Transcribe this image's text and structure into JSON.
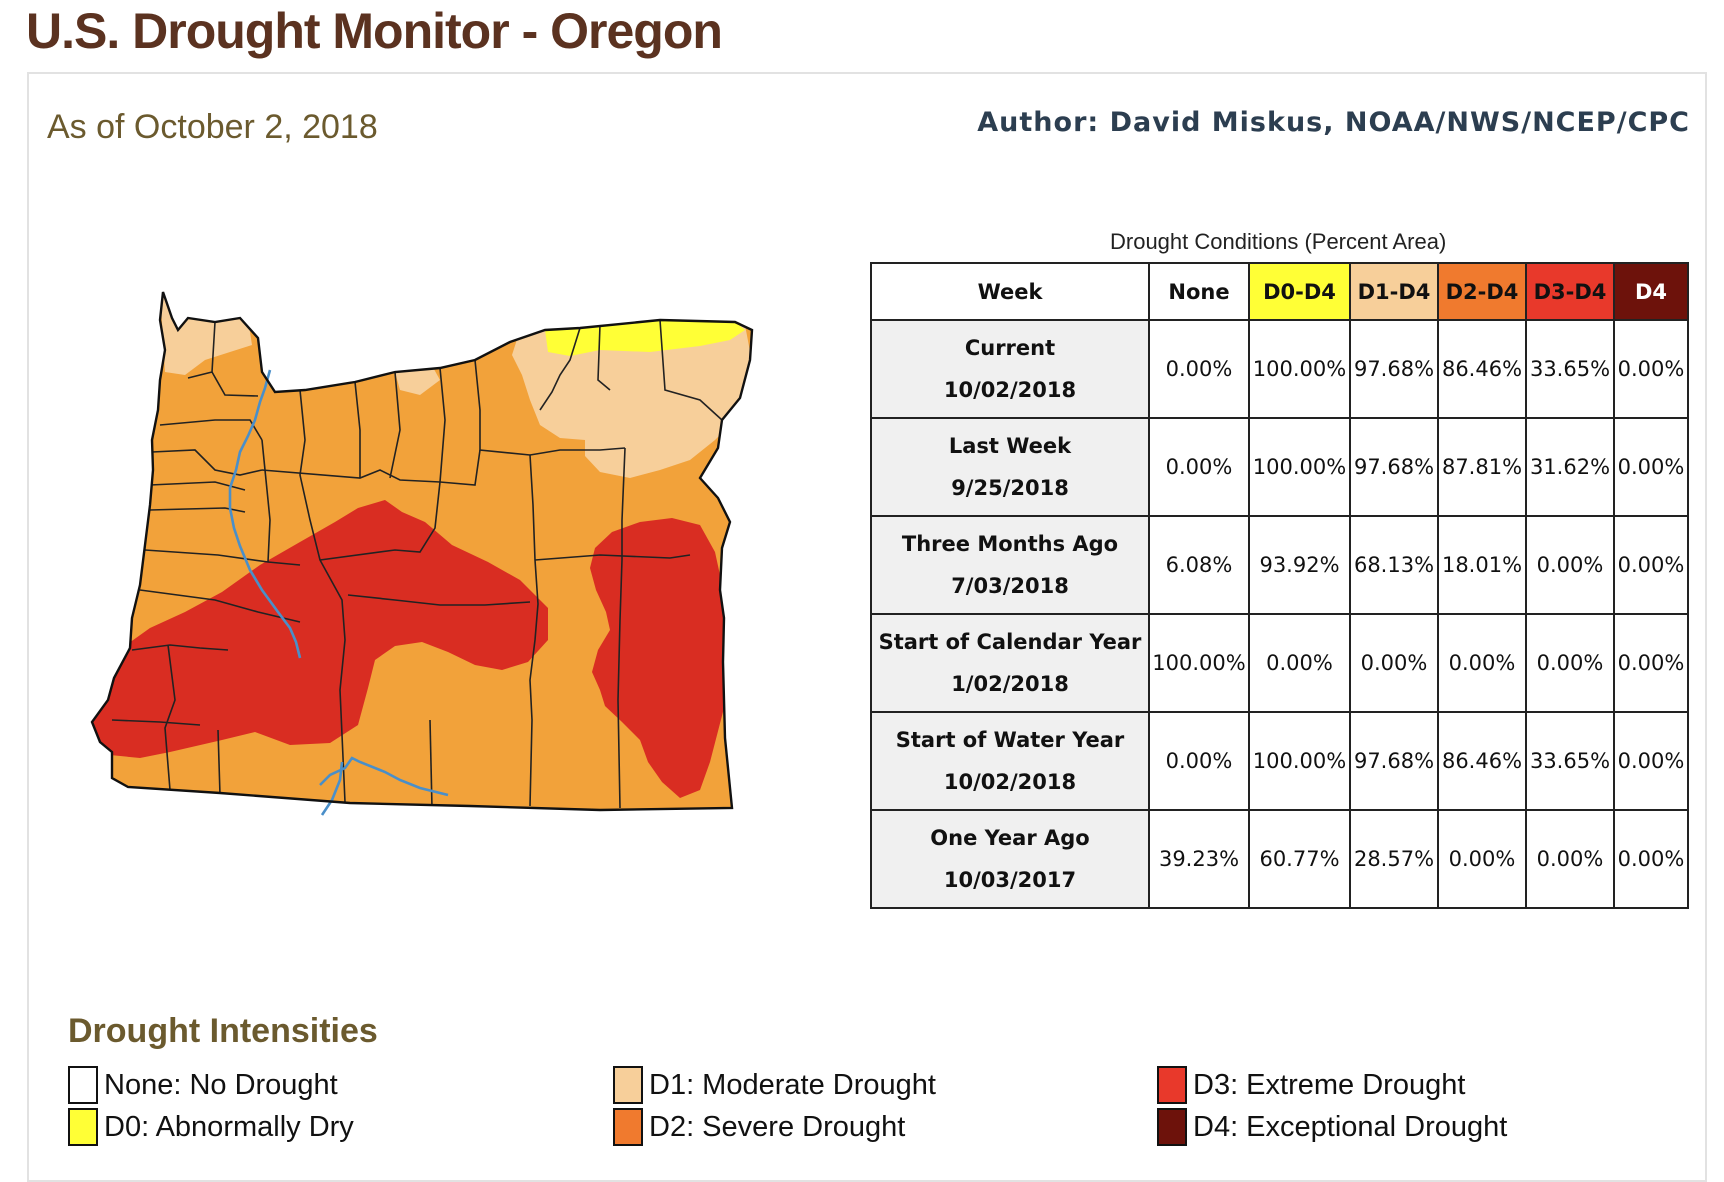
{
  "header": {
    "title": "U.S. Drought Monitor - Oregon",
    "as_of": "As of October 2, 2018",
    "author": "Author: David Miskus, NOAA/NWS/NCEP/CPC"
  },
  "map": {
    "region": "Oregon",
    "colors": {
      "none": "#ffffff",
      "d0": "#ffff36",
      "d1": "#f7cf9a",
      "d2": "#f2a23a",
      "d3": "#d92d22",
      "d4": "#6d120b",
      "water": "#4a8fc9",
      "boundary": "#222222"
    }
  },
  "table": {
    "caption": "Drought Conditions (Percent Area)",
    "headers": [
      "Week",
      "None",
      "D0-D4",
      "D1-D4",
      "D2-D4",
      "D3-D4",
      "D4"
    ],
    "header_colors": [
      "#ffffff",
      "#ffffff",
      "#ffff36",
      "#f7cf9a",
      "#f07a2e",
      "#e8392b",
      "#6d120b"
    ],
    "rows": [
      {
        "label": "Current",
        "date": "10/02/2018",
        "values": [
          "0.00%",
          "100.00%",
          "97.68%",
          "86.46%",
          "33.65%",
          "0.00%"
        ]
      },
      {
        "label": "Last Week",
        "date": "9/25/2018",
        "values": [
          "0.00%",
          "100.00%",
          "97.68%",
          "87.81%",
          "31.62%",
          "0.00%"
        ]
      },
      {
        "label": "Three Months Ago",
        "date": "7/03/2018",
        "values": [
          "6.08%",
          "93.92%",
          "68.13%",
          "18.01%",
          "0.00%",
          "0.00%"
        ]
      },
      {
        "label": "Start of Calendar Year",
        "date": "1/02/2018",
        "values": [
          "100.00%",
          "0.00%",
          "0.00%",
          "0.00%",
          "0.00%",
          "0.00%"
        ]
      },
      {
        "label": "Start of Water Year",
        "date": "10/02/2018",
        "values": [
          "0.00%",
          "100.00%",
          "97.68%",
          "86.46%",
          "33.65%",
          "0.00%"
        ]
      },
      {
        "label": "One Year Ago",
        "date": "10/03/2017",
        "values": [
          "39.23%",
          "60.77%",
          "28.57%",
          "0.00%",
          "0.00%",
          "0.00%"
        ]
      }
    ]
  },
  "legend": {
    "title": "Drought Intensities",
    "items": [
      {
        "label": "None: No Drought",
        "color": "#ffffff"
      },
      {
        "label": "D0: Abnormally Dry",
        "color": "#ffff36"
      },
      {
        "label": "D1: Moderate Drought",
        "color": "#f7cf9a"
      },
      {
        "label": "D2: Severe Drought",
        "color": "#f07a2e"
      },
      {
        "label": "D3: Extreme Drought",
        "color": "#e8392b"
      },
      {
        "label": "D4: Exceptional Drought",
        "color": "#6d120b"
      }
    ]
  }
}
